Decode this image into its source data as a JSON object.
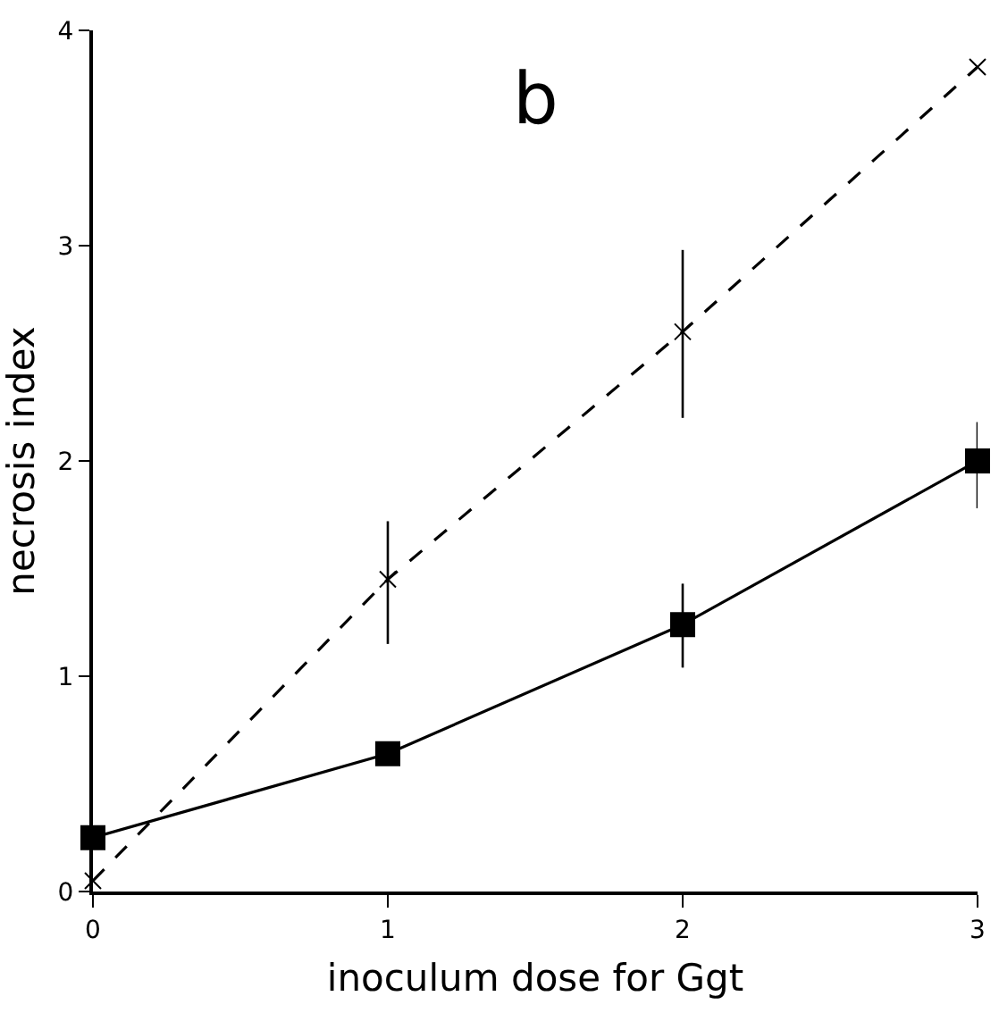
{
  "chart_data": {
    "type": "line",
    "xlabel": "inoculum dose for Ggt",
    "ylabel": "necrosis index",
    "annotations": [
      "b"
    ],
    "x": [
      0,
      1,
      2,
      3
    ],
    "xlim": [
      0,
      3
    ],
    "xticks": [
      0,
      1,
      2,
      3
    ],
    "ylim": [
      0,
      4
    ],
    "yticks": [
      0,
      1,
      2,
      3,
      4
    ],
    "grid": false,
    "series": [
      {
        "color": "#000000",
        "values": [
          0.25,
          0.64,
          1.24,
          2.0
        ],
        "marker": "square",
        "line_style": "solid",
        "errors": [
          null,
          null,
          [
            1.04,
            1.43
          ],
          [
            1.78,
            2.18
          ]
        ]
      },
      {
        "color": "#000000",
        "values": [
          0.05,
          1.45,
          2.6,
          3.83
        ],
        "marker": "cross",
        "line_style": "dashed",
        "errors": [
          null,
          [
            1.15,
            1.72
          ],
          [
            2.2,
            2.98
          ],
          null
        ]
      }
    ]
  }
}
